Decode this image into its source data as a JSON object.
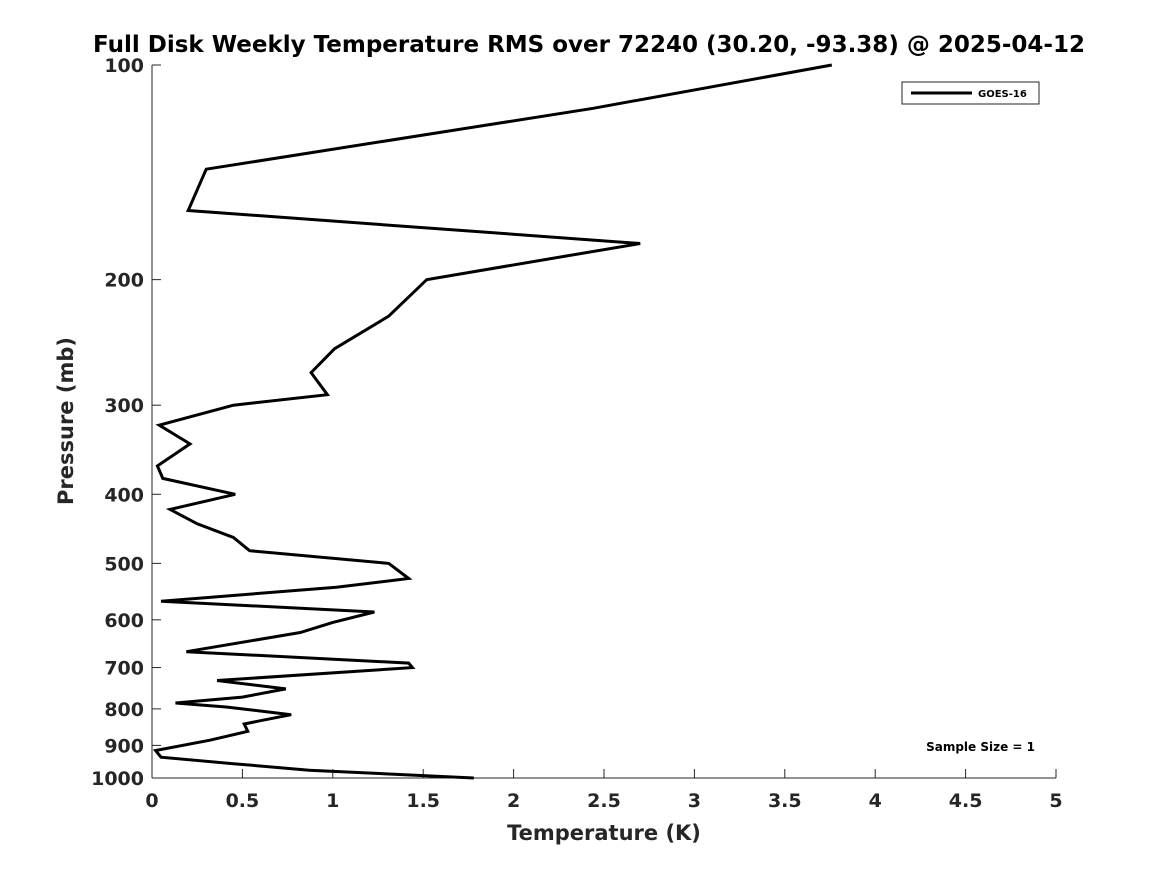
{
  "chart_data": {
    "type": "line",
    "title": "Full Disk Weekly Temperature RMS over 72240 (30.20, -93.38) @ 2025-04-12",
    "xlabel": "Temperature (K)",
    "ylabel": "Pressure (mb)",
    "xlim": [
      0,
      5
    ],
    "ylim": [
      100,
      1000
    ],
    "yscale": "log",
    "y_reversed": true,
    "x_ticks": [
      "0",
      "0.5",
      "1",
      "1.5",
      "2",
      "2.5",
      "3",
      "3.5",
      "4",
      "4.5",
      "5"
    ],
    "x_tick_values": [
      0,
      0.5,
      1,
      1.5,
      2,
      2.5,
      3,
      3.5,
      4,
      4.5,
      5
    ],
    "y_ticks": [
      "100",
      "200",
      "300",
      "400",
      "500",
      "600",
      "700",
      "800",
      "900",
      "1000"
    ],
    "y_tick_values": [
      100,
      200,
      300,
      400,
      500,
      600,
      700,
      800,
      900,
      1000
    ],
    "grid": false,
    "legend_position": "top-right",
    "annotation": "Sample Size = 1",
    "series": [
      {
        "name": "GOES-16",
        "color": "#000000",
        "x": [
          3.76,
          2.44,
          0.3,
          0.2,
          2.7,
          1.52,
          1.31,
          1.01,
          0.88,
          0.97,
          0.45,
          0.04,
          0.21,
          0.03,
          0.06,
          0.46,
          0.1,
          0.25,
          0.45,
          0.54,
          1.31,
          1.42,
          1.02,
          0.05,
          1.23,
          1.0,
          0.82,
          0.19,
          1.42,
          1.44,
          0.36,
          0.74,
          0.5,
          0.13,
          0.41,
          0.77,
          0.61,
          0.51,
          0.53,
          0.32,
          0.02,
          0.05,
          0.45,
          0.87,
          1.78
        ],
        "y": [
          100,
          115,
          140,
          160,
          178,
          200,
          225,
          250,
          270,
          290,
          300,
          320,
          340,
          365,
          380,
          400,
          420,
          440,
          460,
          480,
          500,
          525,
          540,
          565,
          585,
          605,
          625,
          665,
          690,
          700,
          730,
          750,
          770,
          785,
          795,
          815,
          830,
          840,
          860,
          885,
          915,
          935,
          955,
          975,
          1000
        ]
      }
    ]
  }
}
